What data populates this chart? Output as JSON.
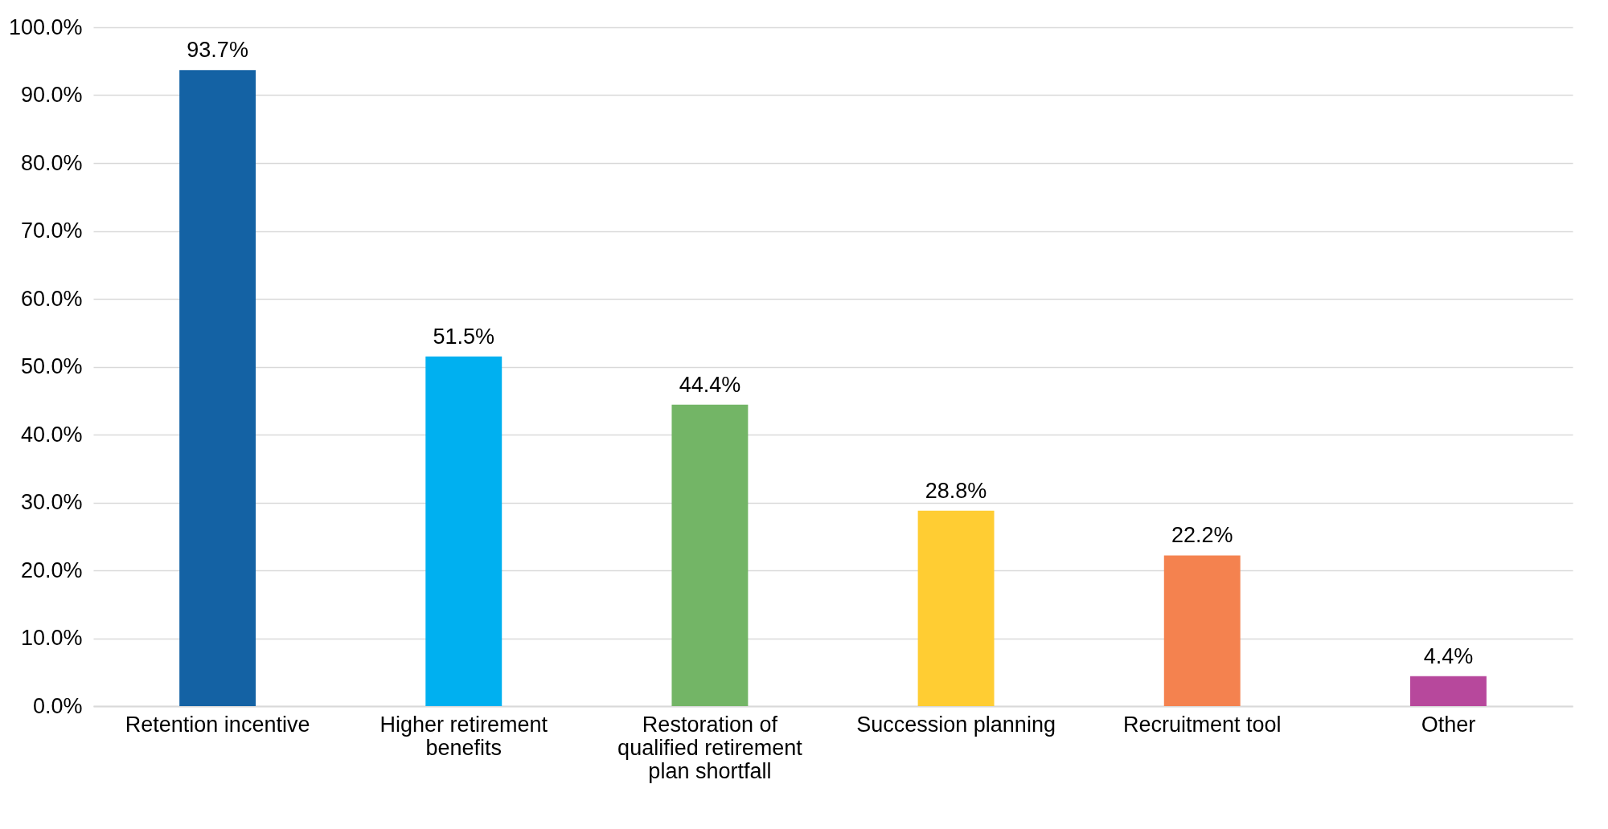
{
  "chart_data": {
    "type": "bar",
    "categories": [
      "Retention incentive",
      "Higher retirement benefits",
      "Restoration of qualified retirement plan shortfall",
      "Succession planning",
      "Recruitment tool",
      "Other"
    ],
    "values": [
      93.7,
      51.5,
      44.4,
      28.8,
      22.2,
      4.4
    ],
    "colors": [
      "#1462a4",
      "#00b0f0",
      "#73b566",
      "#ffcd33",
      "#f4824f",
      "#b7489c"
    ],
    "value_labels": [
      "93.7%",
      "51.5%",
      "44.4%",
      "28.8%",
      "22.2%",
      "4.4%"
    ],
    "ylim": [
      0,
      100
    ],
    "yticks": [
      {
        "value": 0,
        "label": "0.0%"
      },
      {
        "value": 10,
        "label": "10.0%"
      },
      {
        "value": 20,
        "label": "20.0%"
      },
      {
        "value": 30,
        "label": "30.0%"
      },
      {
        "value": 40,
        "label": "40.0%"
      },
      {
        "value": 50,
        "label": "50.0%"
      },
      {
        "value": 60,
        "label": "60.0%"
      },
      {
        "value": 70,
        "label": "70.0%"
      },
      {
        "value": 80,
        "label": "80.0%"
      },
      {
        "value": 90,
        "label": "90.0%"
      },
      {
        "value": 100,
        "label": "100.0%"
      }
    ],
    "grid": "y"
  }
}
